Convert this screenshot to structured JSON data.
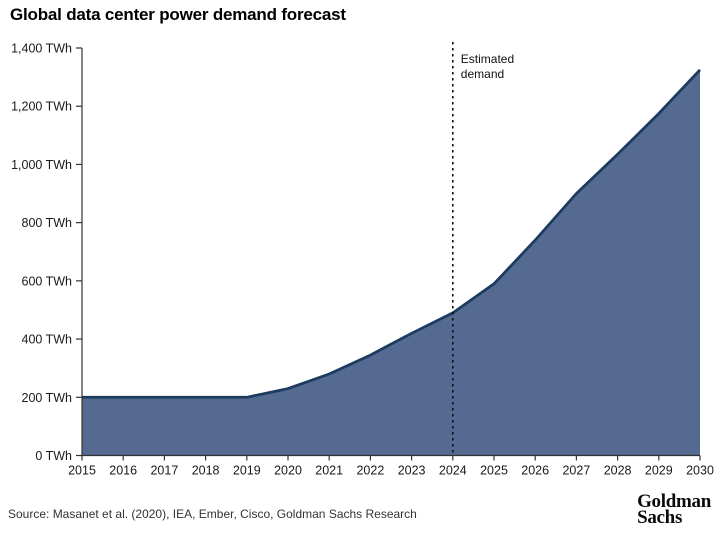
{
  "title": "Global data center power demand forecast",
  "source": "Source: Masanet et al. (2020), IEA, Ember, Cisco, Goldman Sachs Research",
  "logo": {
    "line1": "Goldman",
    "line2": "Sachs"
  },
  "chart_data": {
    "type": "area",
    "title": "Global data center power demand forecast",
    "series_name": "Global data center power demand",
    "x": [
      2015,
      2016,
      2017,
      2018,
      2019,
      2020,
      2021,
      2022,
      2023,
      2024,
      2025,
      2026,
      2027,
      2028,
      2029,
      2030
    ],
    "values": [
      200,
      200,
      200,
      200,
      200,
      230,
      280,
      345,
      420,
      490,
      590,
      740,
      900,
      1035,
      1175,
      1325
    ],
    "unit": "TWh",
    "xlabel": "",
    "ylabel": "",
    "ylim": [
      0,
      1400
    ],
    "ytick_step": 200,
    "ytick_suffix": " TWh",
    "grid": false,
    "legend": "none",
    "annotation": {
      "x": 2024,
      "lines": [
        "Estimated",
        "demand"
      ]
    },
    "colors": {
      "area_fill": "#546a90",
      "line": "#1d3a5f",
      "axis": "#333333",
      "tick_text": "#1a1a1a",
      "annotation_line": "#111111",
      "annotation_text": "#111111"
    }
  }
}
